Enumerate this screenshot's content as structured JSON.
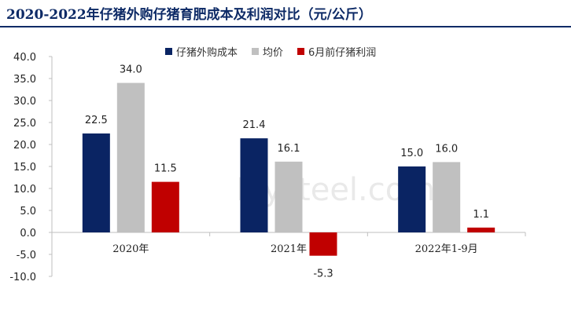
{
  "title": "2020-2022年仔猪外购仔猪育肥成本及利润对比（元/公斤）",
  "watermark": "Mysteel.com",
  "colors": {
    "cost": "#0a2463",
    "avg": "#c0c0c0",
    "profit": "#c00000",
    "title": "#0d2a66"
  },
  "chart_data": {
    "type": "bar",
    "title": "2020-2022年仔猪外购仔猪育肥成本及利润对比（元/公斤）",
    "categories": [
      "2020年",
      "2021年",
      "2022年1-9月"
    ],
    "series": [
      {
        "name": "仔猪外购成本",
        "values": [
          22.5,
          21.4,
          15.0
        ],
        "labels": [
          "22.5",
          "21.4",
          "15.0"
        ]
      },
      {
        "name": "均价",
        "values": [
          34.0,
          16.1,
          16.0
        ],
        "labels": [
          "34.0",
          "16.1",
          "16.0"
        ]
      },
      {
        "name": "6月前仔猪利润",
        "values": [
          11.5,
          -5.3,
          1.1
        ],
        "labels": [
          "11.5",
          "-5.3",
          "1.1"
        ]
      }
    ],
    "ylim": [
      -10,
      40
    ],
    "yticks": [
      40,
      35,
      30,
      25,
      20,
      15,
      10,
      5,
      0,
      -5,
      -10
    ],
    "ytick_labels": [
      "40.0",
      "35.0",
      "30.0",
      "25.0",
      "20.0",
      "15.0",
      "10.0",
      "5.0",
      "0.0",
      "-5.0",
      "-10.0"
    ],
    "legend_position": "top",
    "grid": false
  }
}
